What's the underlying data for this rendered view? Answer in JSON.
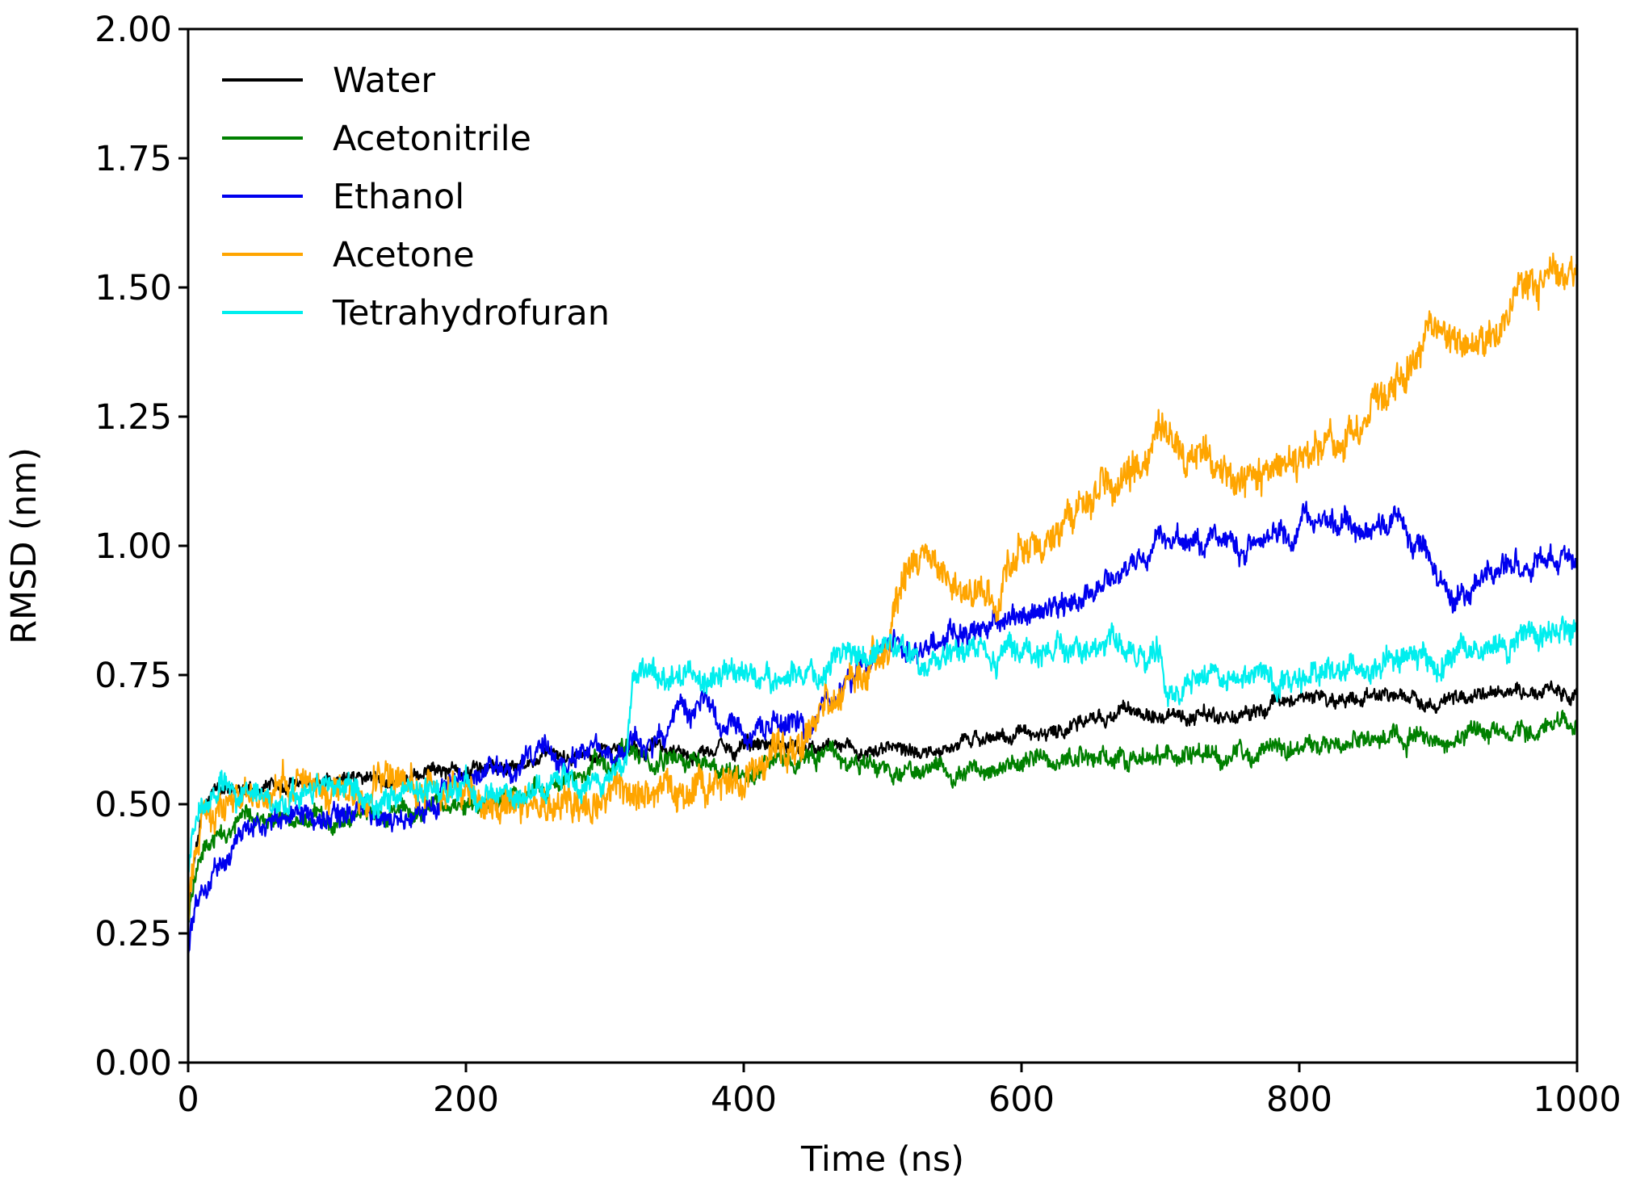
{
  "chart_data": {
    "type": "line",
    "title": "",
    "xlabel": "Time (ns)",
    "ylabel": "RMSD (nm)",
    "xlim": [
      0,
      1000
    ],
    "ylim": [
      0,
      2.0
    ],
    "xticks": [
      0,
      200,
      400,
      600,
      800,
      1000
    ],
    "xtick_labels": [
      "0",
      "200",
      "400",
      "600",
      "800",
      "1000"
    ],
    "yticks": [
      0,
      0.25,
      0.5,
      0.75,
      1.0,
      1.25,
      1.5,
      1.75,
      2.0
    ],
    "ytick_labels": [
      "0.00",
      "0.25",
      "0.50",
      "0.75",
      "1.00",
      "1.25",
      "1.50",
      "1.75",
      "2.00"
    ],
    "grid": false,
    "legend_position": "top-left",
    "series": [
      {
        "name": "Water",
        "color": "#000000",
        "noise": 0.012,
        "x": [
          0,
          5,
          10,
          20,
          30,
          50,
          80,
          100,
          150,
          200,
          250,
          300,
          350,
          400,
          450,
          500,
          550,
          600,
          650,
          680,
          700,
          750,
          800,
          850,
          900,
          950,
          1000
        ],
        "values": [
          0.3,
          0.42,
          0.48,
          0.53,
          0.54,
          0.53,
          0.54,
          0.54,
          0.55,
          0.57,
          0.58,
          0.6,
          0.6,
          0.61,
          0.61,
          0.6,
          0.61,
          0.63,
          0.66,
          0.68,
          0.67,
          0.67,
          0.7,
          0.71,
          0.7,
          0.72,
          0.71
        ]
      },
      {
        "name": "Acetonitrile",
        "color": "#008000",
        "noise": 0.016,
        "x": [
          0,
          5,
          10,
          20,
          40,
          60,
          100,
          150,
          200,
          250,
          300,
          320,
          350,
          400,
          450,
          500,
          550,
          600,
          650,
          700,
          750,
          800,
          850,
          900,
          950,
          1000
        ],
        "values": [
          0.28,
          0.36,
          0.4,
          0.44,
          0.47,
          0.48,
          0.47,
          0.49,
          0.5,
          0.52,
          0.56,
          0.6,
          0.58,
          0.56,
          0.59,
          0.57,
          0.56,
          0.58,
          0.6,
          0.59,
          0.6,
          0.61,
          0.62,
          0.63,
          0.64,
          0.65
        ]
      },
      {
        "name": "Ethanol",
        "color": "#0000ee",
        "noise": 0.02,
        "x": [
          0,
          5,
          10,
          20,
          40,
          60,
          100,
          150,
          200,
          250,
          300,
          320,
          350,
          370,
          400,
          450,
          480,
          500,
          550,
          600,
          650,
          680,
          700,
          750,
          800,
          850,
          870,
          900,
          910,
          950,
          1000
        ],
        "values": [
          0.22,
          0.3,
          0.33,
          0.38,
          0.44,
          0.47,
          0.48,
          0.47,
          0.55,
          0.59,
          0.6,
          0.62,
          0.65,
          0.68,
          0.64,
          0.65,
          0.76,
          0.8,
          0.82,
          0.86,
          0.9,
          0.98,
          1.0,
          1.0,
          1.04,
          1.02,
          1.04,
          0.95,
          0.9,
          0.96,
          0.96
        ]
      },
      {
        "name": "Acetone",
        "color": "#ffa500",
        "noise": 0.03,
        "x": [
          0,
          5,
          10,
          20,
          40,
          60,
          100,
          150,
          200,
          250,
          300,
          350,
          400,
          450,
          480,
          500,
          510,
          530,
          560,
          580,
          600,
          640,
          680,
          700,
          720,
          750,
          800,
          850,
          880,
          900,
          920,
          950,
          980,
          1000
        ],
        "values": [
          0.3,
          0.4,
          0.45,
          0.48,
          0.5,
          0.51,
          0.53,
          0.55,
          0.53,
          0.5,
          0.49,
          0.52,
          0.55,
          0.66,
          0.74,
          0.8,
          0.9,
          0.98,
          0.92,
          0.9,
          0.98,
          1.06,
          1.14,
          1.2,
          1.17,
          1.14,
          1.17,
          1.24,
          1.33,
          1.42,
          1.38,
          1.45,
          1.52,
          1.55
        ]
      },
      {
        "name": "Tetrahydrofuran",
        "color": "#00eeee",
        "noise": 0.022,
        "x": [
          0,
          5,
          10,
          20,
          40,
          60,
          100,
          150,
          200,
          250,
          300,
          315,
          320,
          350,
          400,
          450,
          500,
          550,
          600,
          650,
          700,
          705,
          750,
          800,
          850,
          900,
          950,
          1000
        ],
        "values": [
          0.38,
          0.44,
          0.48,
          0.51,
          0.52,
          0.51,
          0.51,
          0.51,
          0.52,
          0.53,
          0.55,
          0.58,
          0.74,
          0.75,
          0.74,
          0.76,
          0.79,
          0.78,
          0.8,
          0.8,
          0.79,
          0.72,
          0.73,
          0.75,
          0.77,
          0.79,
          0.8,
          0.84
        ]
      }
    ]
  }
}
